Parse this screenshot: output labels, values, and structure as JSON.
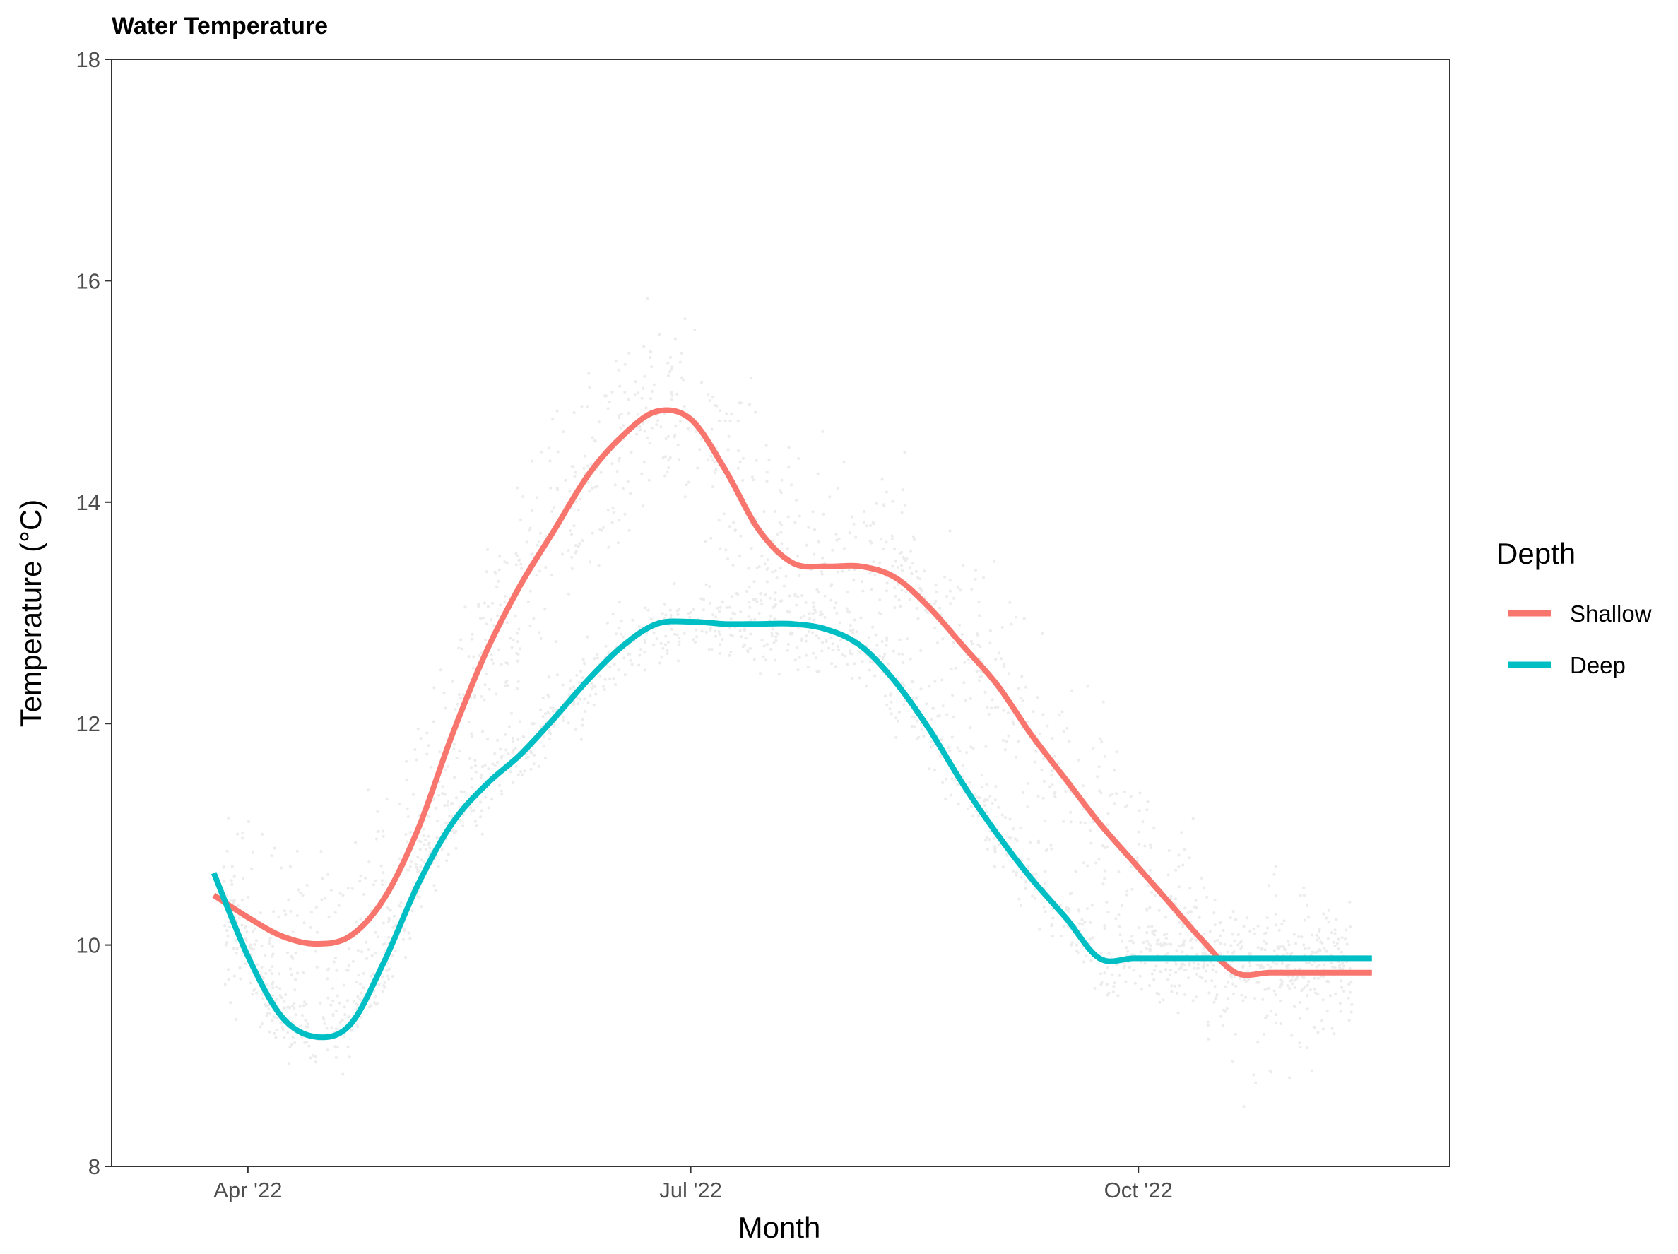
{
  "chart_data": {
    "type": "line",
    "title": "Water Temperature",
    "xlabel": "Month",
    "ylabel": "Temperature (°C)",
    "x_ticks": [
      {
        "date": "2022-04-01",
        "label": "Apr '22"
      },
      {
        "date": "2022-07-01",
        "label": "Jul '22"
      },
      {
        "date": "2022-10-01",
        "label": "Oct '22"
      }
    ],
    "y_ticks": [
      8,
      10,
      12,
      14,
      16,
      18
    ],
    "xlim": [
      "2022-03-04",
      "2022-12-04"
    ],
    "ylim": [
      8,
      18
    ],
    "grid": false,
    "legend": {
      "title": "Depth",
      "position": "right"
    },
    "series": [
      {
        "name": "Shallow",
        "color": "#F8766D",
        "x": [
          "2022-03-25",
          "2022-04-01",
          "2022-04-08",
          "2022-04-15",
          "2022-04-22",
          "2022-04-29",
          "2022-05-06",
          "2022-05-13",
          "2022-05-20",
          "2022-05-27",
          "2022-06-03",
          "2022-06-10",
          "2022-06-17",
          "2022-06-24",
          "2022-07-01",
          "2022-07-08",
          "2022-07-15",
          "2022-07-22",
          "2022-07-29",
          "2022-08-05",
          "2022-08-12",
          "2022-08-19",
          "2022-08-26",
          "2022-09-02",
          "2022-09-09",
          "2022-09-16",
          "2022-09-23",
          "2022-09-30",
          "2022-10-07",
          "2022-10-14",
          "2022-10-21",
          "2022-10-28",
          "2022-11-04",
          "2022-11-11",
          "2022-11-18"
        ],
        "values": [
          10.45,
          10.25,
          10.08,
          10.01,
          10.08,
          10.42,
          11.05,
          11.9,
          12.65,
          13.25,
          13.75,
          14.25,
          14.6,
          14.82,
          14.75,
          14.3,
          13.75,
          13.45,
          13.42,
          13.42,
          13.32,
          13.05,
          12.7,
          12.35,
          11.9,
          11.5,
          11.1,
          10.75,
          10.4,
          10.05,
          9.75,
          9.75,
          9.75,
          9.75,
          9.75
        ]
      },
      {
        "name": "Deep",
        "color": "#00BFC4",
        "x": [
          "2022-03-25",
          "2022-04-01",
          "2022-04-08",
          "2022-04-15",
          "2022-04-22",
          "2022-04-29",
          "2022-05-06",
          "2022-05-13",
          "2022-05-20",
          "2022-05-27",
          "2022-06-03",
          "2022-06-10",
          "2022-06-17",
          "2022-06-24",
          "2022-07-01",
          "2022-07-08",
          "2022-07-15",
          "2022-07-22",
          "2022-07-29",
          "2022-08-05",
          "2022-08-12",
          "2022-08-19",
          "2022-08-26",
          "2022-09-02",
          "2022-09-09",
          "2022-09-16",
          "2022-09-23",
          "2022-09-30",
          "2022-10-07",
          "2022-10-14",
          "2022-10-21",
          "2022-10-28",
          "2022-11-04",
          "2022-11-11",
          "2022-11-18"
        ],
        "values": [
          10.65,
          9.9,
          9.35,
          9.17,
          9.28,
          9.85,
          10.55,
          11.1,
          11.45,
          11.72,
          12.05,
          12.4,
          12.7,
          12.9,
          12.92,
          12.9,
          12.9,
          12.9,
          12.85,
          12.7,
          12.38,
          11.95,
          11.45,
          11.0,
          10.6,
          10.25,
          9.88,
          9.88,
          9.88,
          9.88,
          9.88,
          9.88,
          9.88,
          9.88,
          9.88
        ]
      }
    ]
  }
}
